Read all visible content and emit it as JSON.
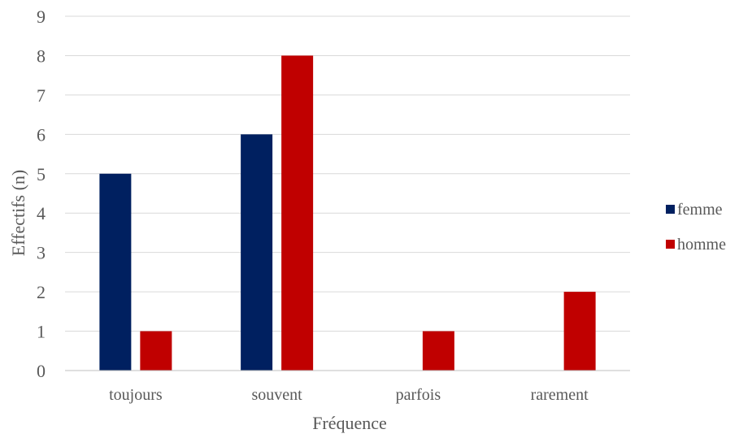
{
  "chart_data": {
    "type": "bar",
    "title": "",
    "xlabel": "Fréquence",
    "ylabel": "Effectifs (n)",
    "categories": [
      "toujours",
      "souvent",
      "parfois",
      "rarement"
    ],
    "series": [
      {
        "name": "femme",
        "values": [
          5,
          6,
          0,
          0
        ],
        "color": "#002060"
      },
      {
        "name": "homme",
        "values": [
          1,
          8,
          1,
          2
        ],
        "color": "#C00000"
      }
    ],
    "ylim": [
      0,
      9
    ],
    "yticks": [
      0,
      1,
      2,
      3,
      4,
      5,
      6,
      7,
      8,
      9
    ],
    "grid": true,
    "legend_position": "right"
  }
}
